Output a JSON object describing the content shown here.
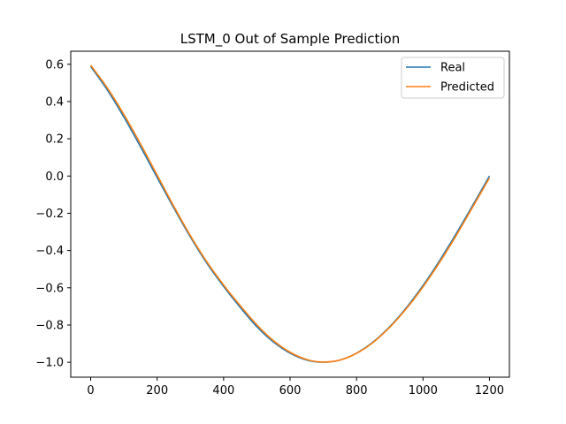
{
  "chart_data": {
    "type": "line",
    "title": "LSTM_0 Out of Sample Prediction",
    "xlabel": "",
    "ylabel": "",
    "xlim": [
      -60,
      1260
    ],
    "ylim": [
      -1.08,
      0.67
    ],
    "xticks": [
      0,
      200,
      400,
      600,
      800,
      1000,
      1200
    ],
    "xtick_labels": [
      "0",
      "200",
      "400",
      "600",
      "800",
      "1000",
      "1200"
    ],
    "yticks": [
      -1.0,
      -0.8,
      -0.6,
      -0.4,
      -0.2,
      0.0,
      0.2,
      0.4,
      0.6
    ],
    "ytick_labels": [
      "−1.0",
      "−0.8",
      "−0.6",
      "−0.4",
      "−0.2",
      "0.0",
      "0.2",
      "0.4",
      "0.6"
    ],
    "grid": false,
    "legend_position": "top-right",
    "series": [
      {
        "name": "Real",
        "color": "#1f77b4",
        "x": [
          0,
          50,
          100,
          150,
          200,
          250,
          300,
          350,
          400,
          450,
          500,
          550,
          600,
          650,
          700,
          750,
          800,
          850,
          900,
          950,
          1000,
          1050,
          1100,
          1150,
          1200
        ],
        "y": [
          0.588,
          0.462,
          0.316,
          0.157,
          -0.008,
          -0.171,
          -0.327,
          -0.469,
          -0.593,
          -0.705,
          -0.809,
          -0.891,
          -0.951,
          -0.988,
          -1.0,
          -0.988,
          -0.951,
          -0.891,
          -0.809,
          -0.707,
          -0.588,
          -0.454,
          -0.309,
          -0.156,
          0.0
        ]
      },
      {
        "name": "Predicted",
        "color": "#ff7f0e",
        "x": [
          0,
          50,
          100,
          150,
          200,
          250,
          300,
          350,
          400,
          450,
          500,
          550,
          600,
          650,
          700,
          750,
          800,
          850,
          900,
          950,
          1000,
          1050,
          1100,
          1150,
          1200
        ],
        "y": [
          0.595,
          0.473,
          0.33,
          0.172,
          0.005,
          -0.162,
          -0.32,
          -0.462,
          -0.585,
          -0.696,
          -0.799,
          -0.884,
          -0.946,
          -0.985,
          -0.999,
          -0.988,
          -0.952,
          -0.893,
          -0.812,
          -0.712,
          -0.595,
          -0.463,
          -0.319,
          -0.165,
          -0.01
        ]
      }
    ]
  }
}
